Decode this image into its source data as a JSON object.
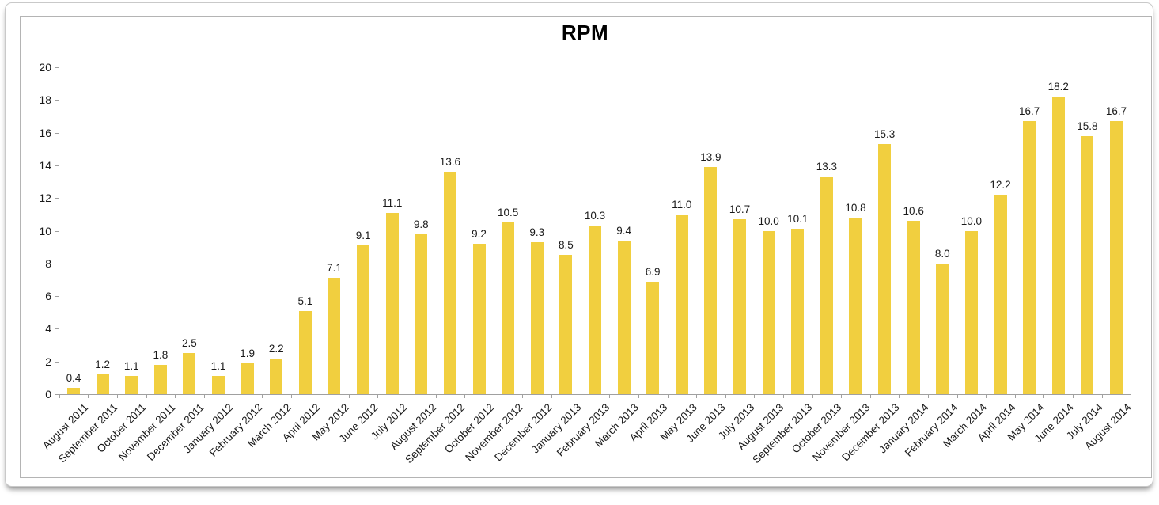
{
  "page": {
    "title": "RPM"
  },
  "chart_data": {
    "type": "bar",
    "title": "RPM",
    "categories": [
      "August 2011",
      "September 2011",
      "October 2011",
      "November 2011",
      "December 2011",
      "January 2012",
      "February 2012",
      "March 2012",
      "April 2012",
      "May 2012",
      "June 2012",
      "July 2012",
      "August 2012",
      "September 2012",
      "October 2012",
      "November 2012",
      "December 2012",
      "January 2013",
      "February 2013",
      "March 2013",
      "April 2013",
      "May 2013",
      "June 2013",
      "July 2013",
      "August 2013",
      "September 2013",
      "October 2013",
      "November 2013",
      "December 2013",
      "January 2014",
      "February 2014",
      "March 2014",
      "April 2014",
      "May 2014",
      "June 2014",
      "July 2014",
      "August 2014"
    ],
    "values": [
      0.4,
      1.2,
      1.1,
      1.8,
      2.5,
      1.1,
      1.9,
      2.2,
      5.1,
      7.1,
      9.1,
      11.1,
      9.8,
      13.6,
      9.2,
      10.5,
      9.3,
      8.5,
      10.3,
      9.4,
      6.9,
      11.0,
      13.9,
      10.7,
      10.0,
      10.1,
      13.3,
      10.8,
      15.3,
      10.6,
      8.0,
      10.0,
      12.2,
      16.7,
      18.2,
      15.8,
      16.7
    ],
    "value_label_format": "one_decimal",
    "xlabel": "",
    "ylabel": "",
    "ylim": [
      0,
      20
    ],
    "ytick_step": 2,
    "yticks": [
      0,
      2,
      4,
      6,
      8,
      10,
      12,
      14,
      16,
      18,
      20
    ],
    "grid": false,
    "legend_position": "none",
    "bar_color": "#F1CF3F",
    "axis_color": "#a0a0a0",
    "text_color": "#1a1a1a"
  }
}
